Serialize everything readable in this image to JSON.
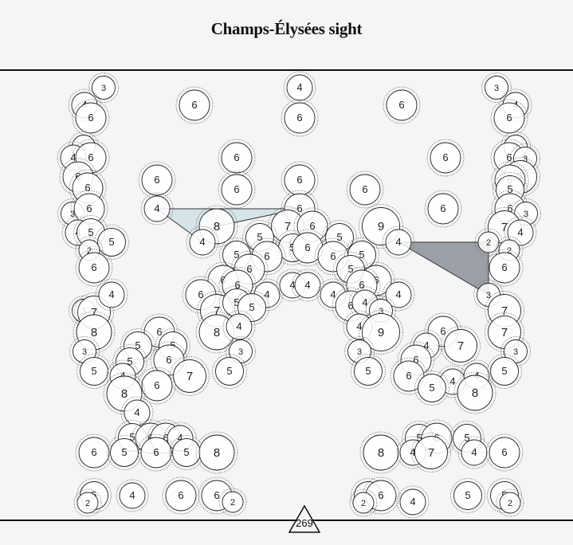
{
  "title": "Champs-Élysées sight",
  "bearing_label": "269",
  "colors": {
    "background": "#f6f4f5",
    "marker_fill": "#ffffff",
    "marker_stroke": "#222222",
    "halo_stroke": "#777777",
    "light_region": "#d6e3e8",
    "dark_region": "#9aa0a6"
  },
  "markers": [
    [
      130,
      110,
      3
    ],
    [
      106,
      132,
      4
    ],
    [
      114,
      148,
      6
    ],
    [
      244,
      132,
      6
    ],
    [
      376,
      110,
      4
    ],
    [
      376,
      148,
      6
    ],
    [
      504,
      132,
      6
    ],
    [
      623,
      110,
      3
    ],
    [
      647,
      132,
      4
    ],
    [
      639,
      148,
      6
    ],
    [
      105,
      184,
      3
    ],
    [
      92,
      198,
      4
    ],
    [
      114,
      198,
      6
    ],
    [
      297,
      198,
      6
    ],
    [
      559,
      198,
      6
    ],
    [
      647,
      184,
      3
    ],
    [
      639,
      198,
      6
    ],
    [
      659,
      199,
      3
    ],
    [
      653,
      222,
      7
    ],
    [
      98,
      222,
      6
    ],
    [
      110,
      236,
      6
    ],
    [
      197,
      226,
      6
    ],
    [
      297,
      238,
      6
    ],
    [
      376,
      226,
      6
    ],
    [
      458,
      238,
      6
    ],
    [
      640,
      226,
      6
    ],
    [
      640,
      238,
      5
    ],
    [
      91,
      268,
      3
    ],
    [
      112,
      262,
      6
    ],
    [
      197,
      262,
      4
    ],
    [
      376,
      262,
      6
    ],
    [
      556,
      262,
      6
    ],
    [
      640,
      262,
      6
    ],
    [
      660,
      268,
      3
    ],
    [
      633,
      285,
      7
    ],
    [
      653,
      292,
      4
    ],
    [
      98,
      292,
      4
    ],
    [
      114,
      292,
      5
    ],
    [
      140,
      304,
      5
    ],
    [
      112,
      314,
      2
    ],
    [
      272,
      284,
      8
    ],
    [
      361,
      284,
      7
    ],
    [
      392,
      284,
      6
    ],
    [
      478,
      284,
      9
    ],
    [
      500,
      304,
      4
    ],
    [
      254,
      304,
      4
    ],
    [
      326,
      298,
      5
    ],
    [
      367,
      311,
      5
    ],
    [
      386,
      311,
      6
    ],
    [
      426,
      298,
      5
    ],
    [
      613,
      304,
      2
    ],
    [
      639,
      314,
      2
    ],
    [
      633,
      336,
      6
    ],
    [
      297,
      320,
      5
    ],
    [
      335,
      322,
      6
    ],
    [
      418,
      322,
      6
    ],
    [
      454,
      320,
      5
    ],
    [
      118,
      336,
      6
    ],
    [
      313,
      338,
      6
    ],
    [
      440,
      338,
      5
    ],
    [
      280,
      352,
      6
    ],
    [
      298,
      358,
      6
    ],
    [
      472,
      352,
      6
    ],
    [
      454,
      358,
      6
    ],
    [
      252,
      370,
      6
    ],
    [
      335,
      370,
      4
    ],
    [
      367,
      358,
      4
    ],
    [
      386,
      358,
      4
    ],
    [
      418,
      370,
      4
    ],
    [
      500,
      370,
      4
    ],
    [
      105,
      390,
      3
    ],
    [
      118,
      392,
      7
    ],
    [
      140,
      370,
      4
    ],
    [
      272,
      390,
      7
    ],
    [
      297,
      380,
      5
    ],
    [
      316,
      386,
      5
    ],
    [
      440,
      384,
      6
    ],
    [
      458,
      380,
      4
    ],
    [
      478,
      390,
      3
    ],
    [
      613,
      370,
      3
    ],
    [
      633,
      390,
      7
    ],
    [
      118,
      417,
      8
    ],
    [
      200,
      417,
      6
    ],
    [
      272,
      417,
      8
    ],
    [
      300,
      410,
      4
    ],
    [
      451,
      410,
      4
    ],
    [
      478,
      417,
      9
    ],
    [
      556,
      416,
      6
    ],
    [
      578,
      434,
      7
    ],
    [
      633,
      417,
      7
    ],
    [
      173,
      434,
      5
    ],
    [
      217,
      434,
      5
    ],
    [
      106,
      441,
      3
    ],
    [
      302,
      441,
      3
    ],
    [
      451,
      441,
      3
    ],
    [
      535,
      434,
      4
    ],
    [
      647,
      441,
      3
    ],
    [
      163,
      454,
      5
    ],
    [
      212,
      452,
      6
    ],
    [
      522,
      452,
      6
    ],
    [
      118,
      466,
      5
    ],
    [
      154,
      472,
      4
    ],
    [
      238,
      472,
      7
    ],
    [
      288,
      466,
      5
    ],
    [
      462,
      466,
      5
    ],
    [
      513,
      472,
      6
    ],
    [
      568,
      479,
      4
    ],
    [
      598,
      472,
      4
    ],
    [
      633,
      466,
      5
    ],
    [
      197,
      484,
      6
    ],
    [
      156,
      494,
      8
    ],
    [
      542,
      487,
      5
    ],
    [
      596,
      493,
      8
    ],
    [
      172,
      518,
      4
    ],
    [
      166,
      549,
      5
    ],
    [
      189,
      550,
      6
    ],
    [
      208,
      550,
      6
    ],
    [
      226,
      550,
      4
    ],
    [
      526,
      550,
      5
    ],
    [
      548,
      550,
      6
    ],
    [
      586,
      550,
      5
    ],
    [
      118,
      568,
      6
    ],
    [
      156,
      568,
      5
    ],
    [
      196,
      568,
      6
    ],
    [
      234,
      568,
      5
    ],
    [
      272,
      568,
      8
    ],
    [
      478,
      568,
      8
    ],
    [
      518,
      568,
      4
    ],
    [
      541,
      568,
      7
    ],
    [
      595,
      568,
      4
    ],
    [
      633,
      568,
      6
    ],
    [
      118,
      622,
      5
    ],
    [
      166,
      622,
      4
    ],
    [
      227,
      622,
      6
    ],
    [
      272,
      622,
      6
    ],
    [
      292,
      630,
      2
    ],
    [
      462,
      622,
      5
    ],
    [
      478,
      622,
      6
    ],
    [
      518,
      630,
      4
    ],
    [
      587,
      622,
      5
    ],
    [
      633,
      622,
      5
    ],
    [
      110,
      631,
      2
    ],
    [
      456,
      631,
      2
    ],
    [
      640,
      631,
      2
    ]
  ]
}
